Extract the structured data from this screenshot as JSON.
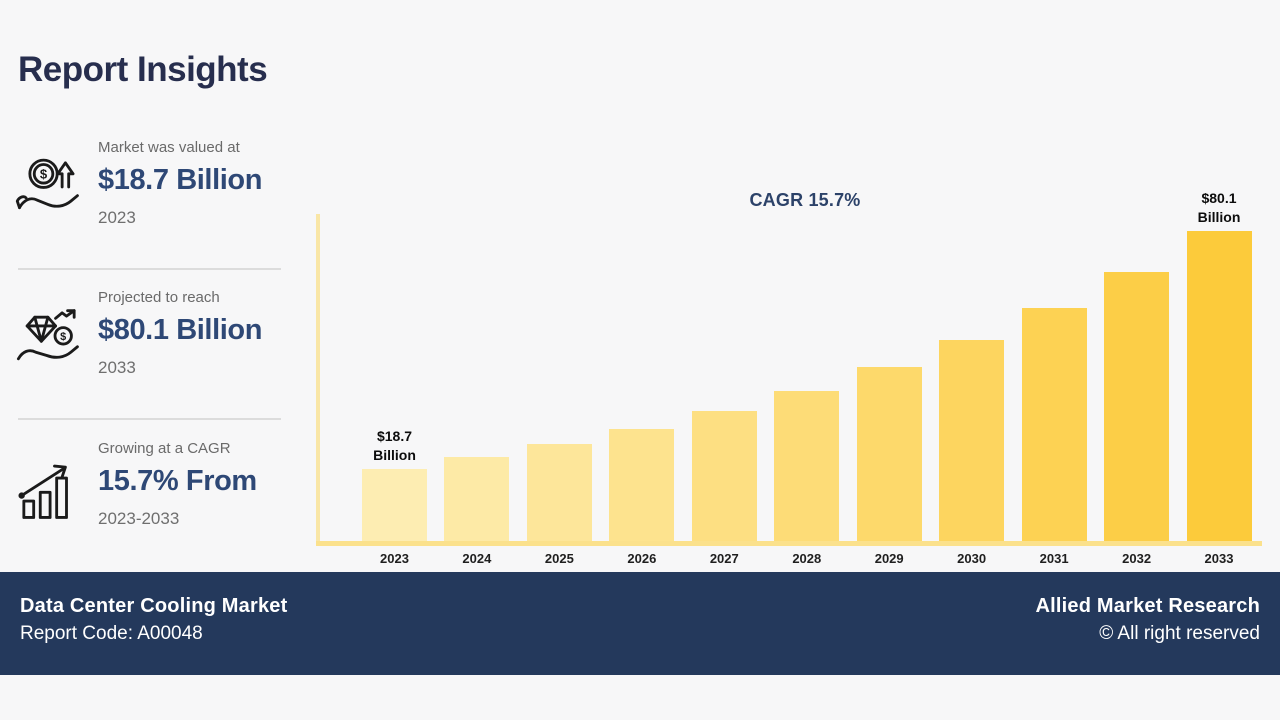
{
  "page": {
    "title": "Report Insights",
    "background": "#f7f7f8"
  },
  "insights": [
    {
      "icon": "hand-coin-growth-icon",
      "label": "Market was valued at",
      "value": "$18.7 Billion",
      "period": "2023"
    },
    {
      "icon": "hand-diamond-investment-icon",
      "label": "Projected to reach",
      "value": "$80.1 Billion",
      "period": "2033"
    },
    {
      "icon": "growth-bars-arrow-icon",
      "label": "Growing at a CAGR",
      "value": "15.7% From",
      "period": "2023-2033"
    }
  ],
  "chart_data": {
    "type": "bar",
    "title": "CAGR 15.7%",
    "unit": "USD Billion",
    "categories": [
      "2023",
      "2024",
      "2025",
      "2026",
      "2027",
      "2028",
      "2029",
      "2030",
      "2031",
      "2032",
      "2033"
    ],
    "values": [
      18.7,
      21.6,
      25.0,
      29.0,
      33.5,
      38.8,
      44.9,
      51.9,
      60.1,
      69.5,
      80.1
    ],
    "ylim": [
      0,
      80.1
    ],
    "grid": false,
    "legend": null,
    "bar_colors": [
      "#fdedb2",
      "#fdeaa6",
      "#fde69a",
      "#fde38e",
      "#fddf82",
      "#fddc77",
      "#fdd96b",
      "#fdd55f",
      "#fdd253",
      "#fcce47",
      "#fccb3b"
    ],
    "axis_color": "#f9e6a6",
    "baseline_color": "#fbe18c",
    "annotations": [
      {
        "index": 0,
        "lines": [
          "$18.7",
          "Billion"
        ]
      },
      {
        "index": 10,
        "lines": [
          "$80.1",
          "Billion"
        ]
      }
    ]
  },
  "footer": {
    "market_name": "Data Center Cooling Market",
    "report_code": "Report Code: A00048",
    "brand": "Allied Market Research",
    "rights": "© All right reserved",
    "background": "#24395c"
  },
  "colors": {
    "title": "#272e4e",
    "value": "#2e4876",
    "muted": "#6a6a6a",
    "background": "#f7f7f8"
  }
}
